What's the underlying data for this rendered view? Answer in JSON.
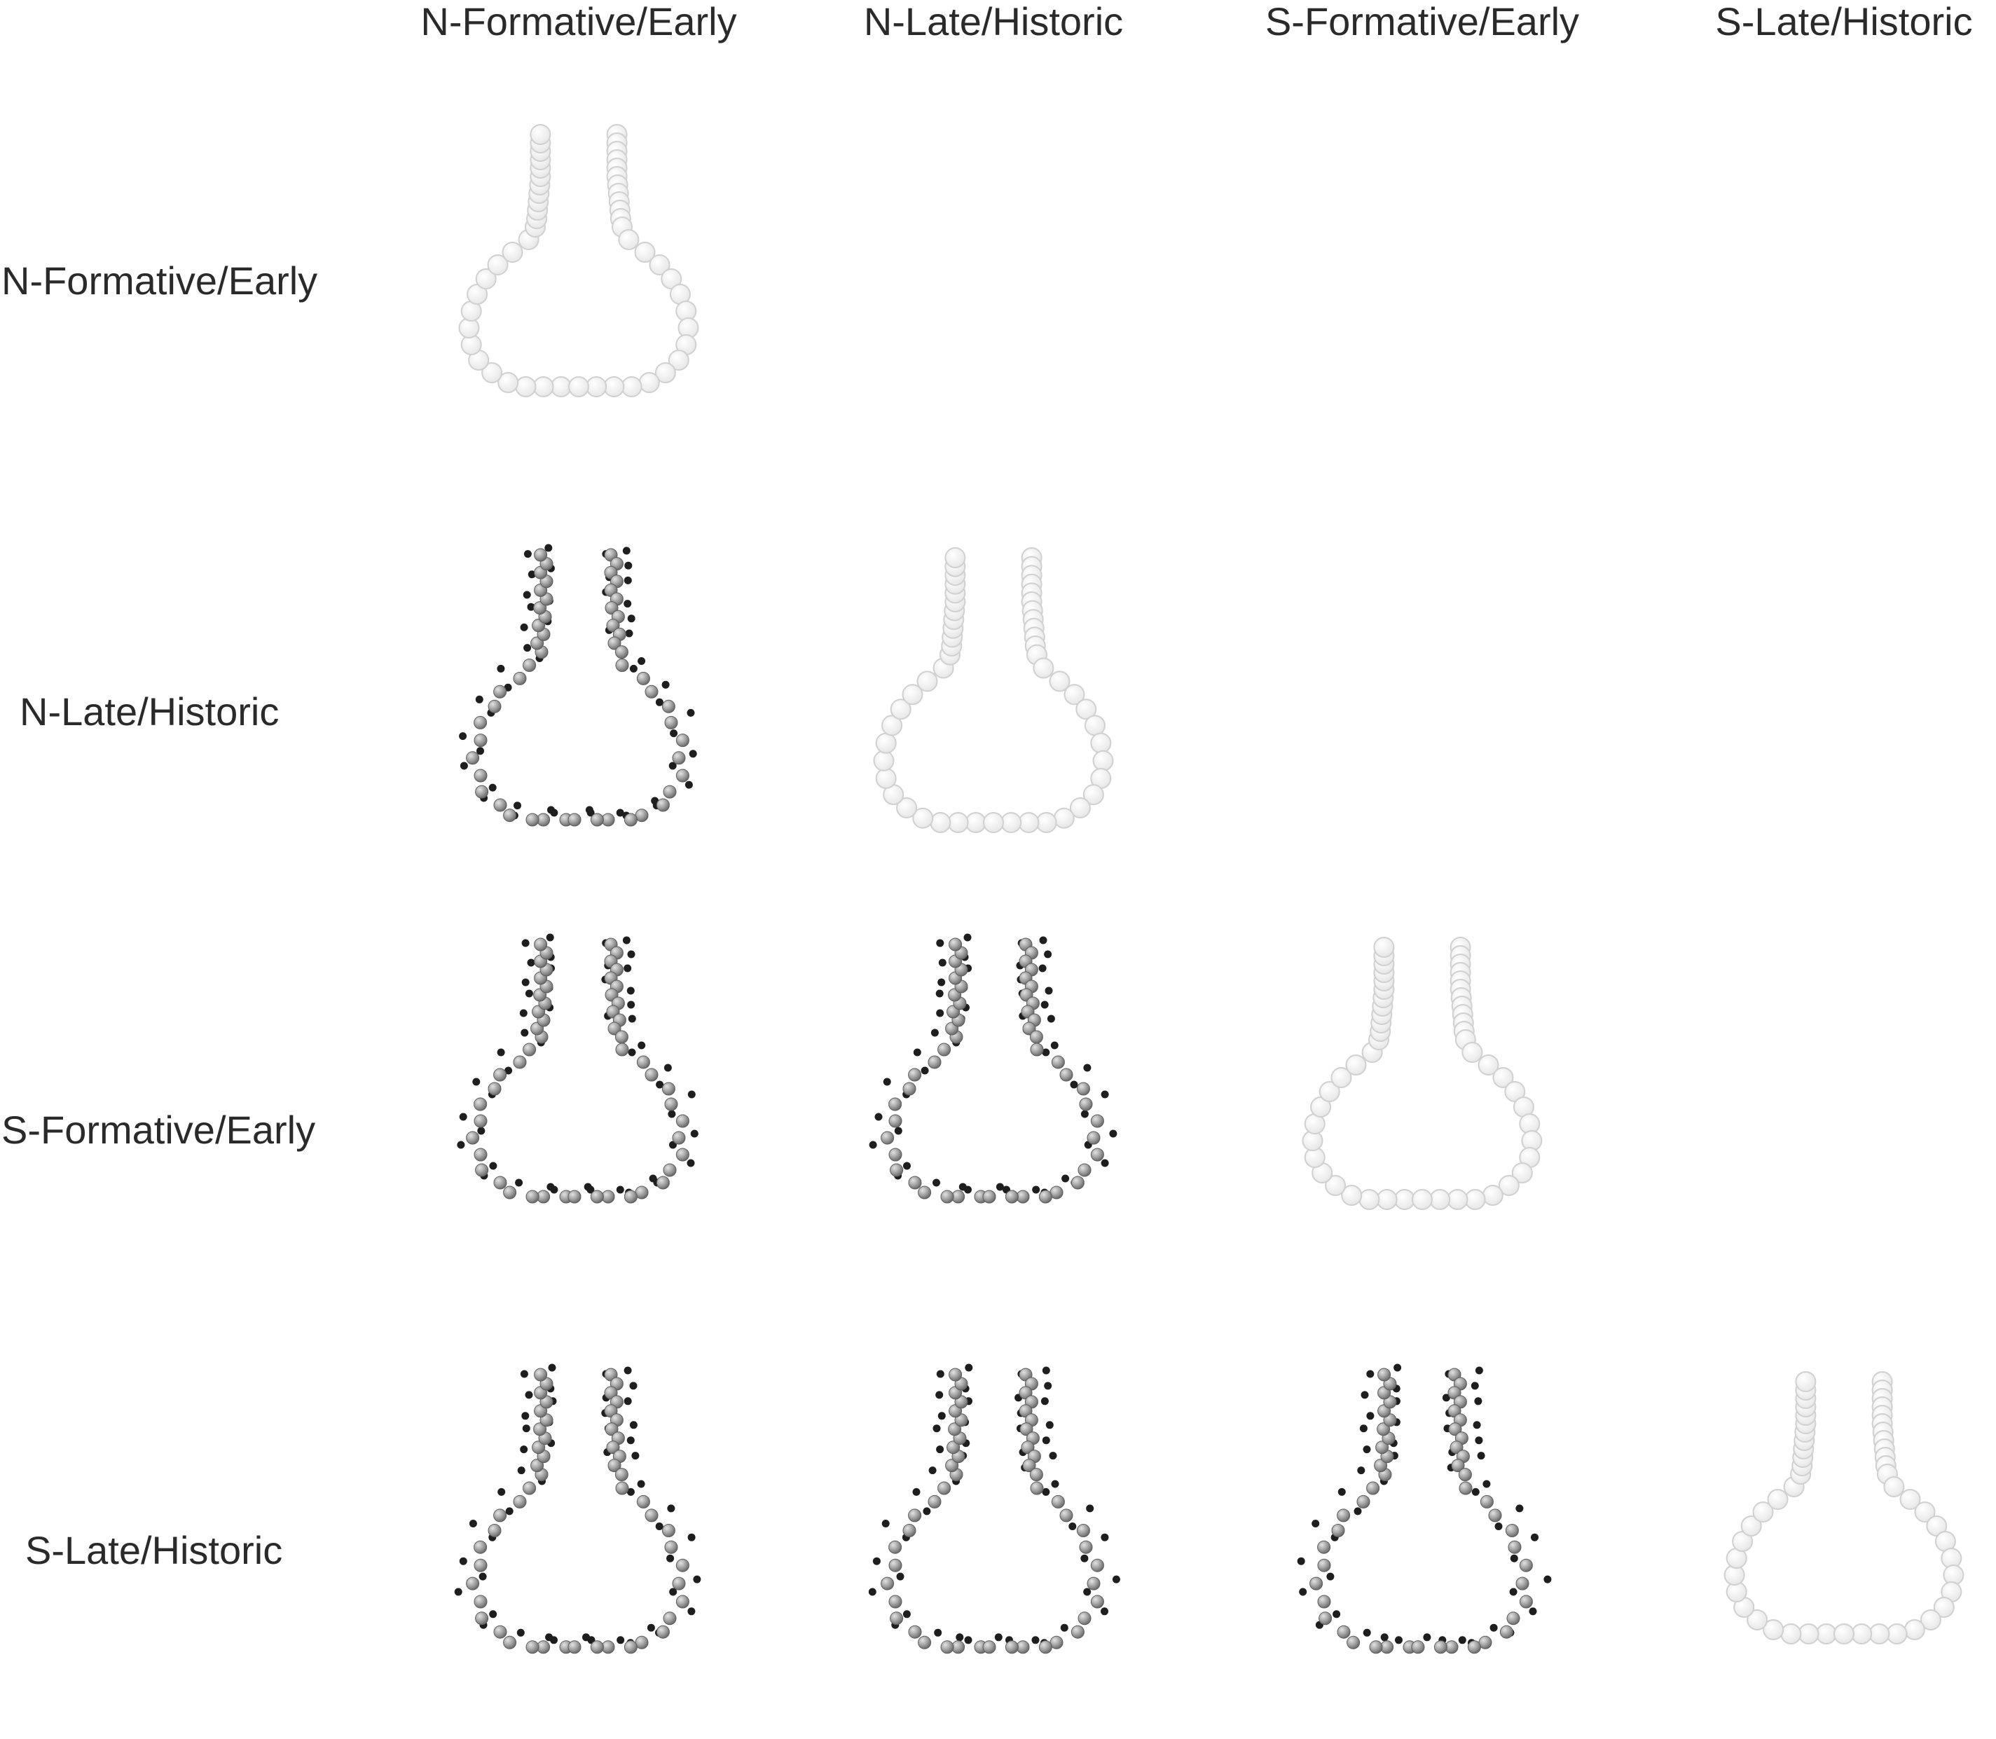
{
  "column_labels": [
    "N-Formative/Early",
    "N-Late/Historic",
    "S-Formative/Early",
    "S-Late/Historic"
  ],
  "row_labels": [
    "N-Formative/Early",
    "N-Late/Historic",
    "S-Formative/Early",
    "S-Late/Historic"
  ],
  "colors": {
    "self_point": "#f4f4f4",
    "self_stroke": "#d0d0d0",
    "mean_point": "#a3a3a3",
    "mean_stroke": "#5c5c5c",
    "compared_point": "#1e1e1e",
    "label_text": "#2a2a2a"
  }
}
